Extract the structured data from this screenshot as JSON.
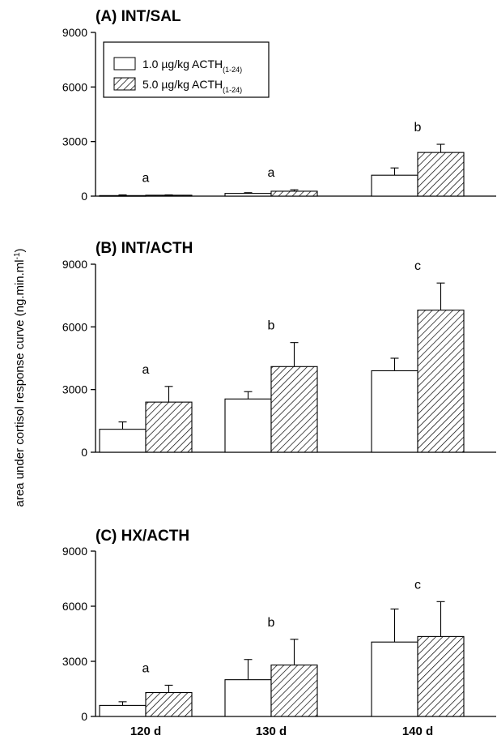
{
  "y_axis_label": {
    "main": "area under cortisol response curve (ng.min.ml",
    "superscript": "-1",
    "close": ")"
  },
  "legend": {
    "items": [
      {
        "text": "1.0 µg/kg ACTH",
        "subscript": "(1-24)",
        "fill": "white"
      },
      {
        "text": "5.0 µg/kg ACTH",
        "subscript": "(1-24)",
        "fill": "hatched"
      }
    ]
  },
  "chart_data": [
    {
      "type": "bar",
      "title": "(A) INT/SAL",
      "categories": [
        "120 d",
        "130 d",
        "140 d"
      ],
      "series": [
        {
          "name": "1.0 µg/kg ACTH(1-24)",
          "values": [
            30,
            150,
            1150
          ],
          "errors": [
            40,
            40,
            400
          ]
        },
        {
          "name": "5.0 µg/kg ACTH(1-24)",
          "values": [
            50,
            270,
            2400
          ],
          "errors": [
            20,
            80,
            450
          ]
        }
      ],
      "significance": [
        "a",
        "a",
        "b"
      ],
      "ylim": [
        0,
        9000
      ],
      "yticks": [
        0,
        3000,
        6000,
        9000
      ],
      "show_xlabels": false
    },
    {
      "type": "bar",
      "title": "(B) INT/ACTH",
      "categories": [
        "120 d",
        "130 d",
        "140 d"
      ],
      "series": [
        {
          "name": "1.0 µg/kg ACTH(1-24)",
          "values": [
            1100,
            2550,
            3900
          ],
          "errors": [
            350,
            350,
            600
          ]
        },
        {
          "name": "5.0 µg/kg ACTH(1-24)",
          "values": [
            2400,
            4100,
            6800
          ],
          "errors": [
            750,
            1150,
            1300
          ]
        }
      ],
      "significance": [
        "a",
        "b",
        "c"
      ],
      "ylim": [
        0,
        9000
      ],
      "yticks": [
        0,
        3000,
        6000,
        9000
      ],
      "show_xlabels": false
    },
    {
      "type": "bar",
      "title": "(C) HX/ACTH",
      "categories": [
        "120 d",
        "130 d",
        "140 d"
      ],
      "series": [
        {
          "name": "1.0 µg/kg ACTH(1-24)",
          "values": [
            600,
            2000,
            4050
          ],
          "errors": [
            200,
            1100,
            1800
          ]
        },
        {
          "name": "5.0 µg/kg ACTH(1-24)",
          "values": [
            1300,
            2800,
            4350
          ],
          "errors": [
            400,
            1400,
            1900
          ]
        }
      ],
      "significance": [
        "a",
        "b",
        "c"
      ],
      "ylim": [
        0,
        9000
      ],
      "yticks": [
        0,
        3000,
        6000,
        9000
      ],
      "show_xlabels": true
    }
  ]
}
